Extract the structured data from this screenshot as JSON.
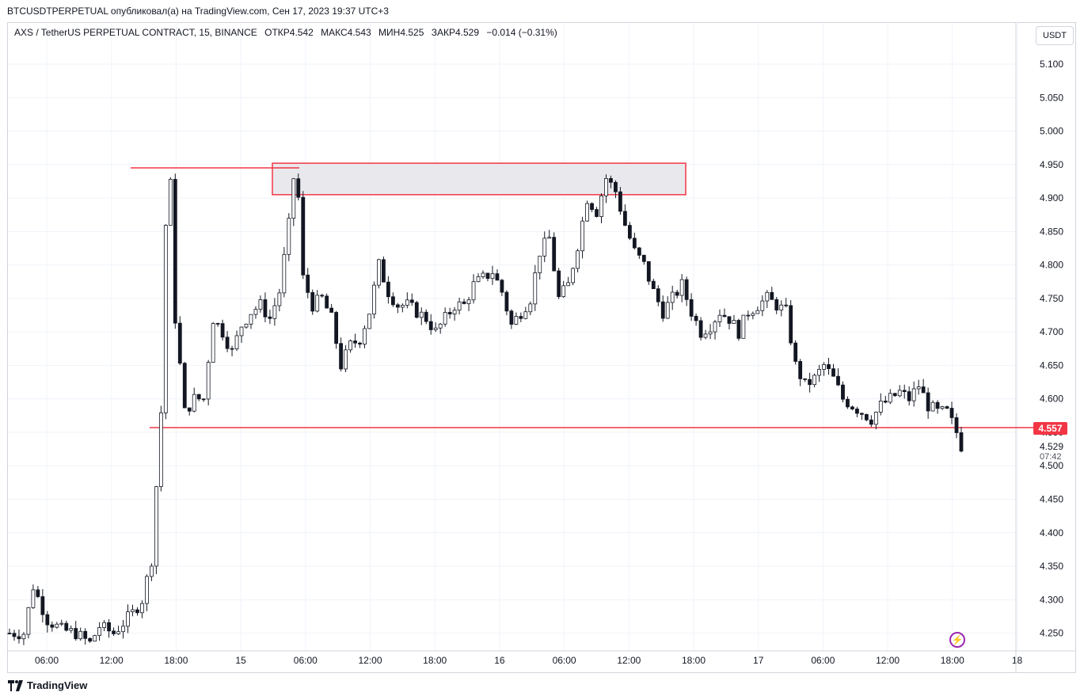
{
  "header": {
    "publish_line": "BTCUSDTPERPETUAL опубликовал(а) на TradingView.com, Сен 17, 2023 19:37 UTC+3"
  },
  "legend": {
    "symbol": "AXS / TetherUS PERPETUAL CONTRACT, 15, BINANCE",
    "open": "ОТКР4.542",
    "high": "МАКС4.543",
    "low": "МИН4.525",
    "close": "ЗАКР4.529",
    "change": "−0.014 (−0.31%)"
  },
  "unit_button": "USDT",
  "price_labels": {
    "level_label": "4.557",
    "current_price": "4.529",
    "countdown": "07:42"
  },
  "footer": {
    "brand": "TradingView"
  },
  "colors": {
    "accent": "#f23645",
    "candle": "#131722",
    "zone_fill": "#e9e9ed",
    "grid": "#f0f3fa"
  },
  "chart_data": {
    "type": "candlestick",
    "y_ticks": [
      "5.100",
      "5.050",
      "5.000",
      "4.950",
      "4.900",
      "4.850",
      "4.800",
      "4.750",
      "4.700",
      "4.650",
      "4.600",
      "4.550",
      "4.500",
      "4.450",
      "4.400",
      "4.350",
      "4.300",
      "4.250"
    ],
    "x_ticks": [
      "06:00",
      "12:00",
      "18:00",
      "15",
      "06:00",
      "12:00",
      "18:00",
      "16",
      "06:00",
      "12:00",
      "18:00",
      "17",
      "06:00",
      "12:00",
      "18:00",
      "18"
    ],
    "ylim": [
      4.225,
      5.125
    ],
    "annotations": {
      "resistance_zone": [
        4.905,
        4.952
      ],
      "support_line": 4.557,
      "high_line": 4.945
    },
    "price_path": [
      [
        0,
        4.25
      ],
      [
        3,
        4.25
      ],
      [
        5,
        4.32
      ],
      [
        8,
        4.27
      ],
      [
        11,
        4.255
      ],
      [
        14,
        4.25
      ],
      [
        17,
        4.235
      ],
      [
        19,
        4.26
      ],
      [
        22,
        4.25
      ],
      [
        26,
        4.28
      ],
      [
        28,
        4.3
      ],
      [
        30,
        4.36
      ],
      [
        32,
        4.58
      ],
      [
        33,
        4.86
      ],
      [
        34,
        4.92
      ],
      [
        35,
        4.72
      ],
      [
        37,
        4.58
      ],
      [
        39,
        4.6
      ],
      [
        41,
        4.6
      ],
      [
        43,
        4.72
      ],
      [
        45,
        4.7
      ],
      [
        47,
        4.67
      ],
      [
        49,
        4.71
      ],
      [
        51,
        4.73
      ],
      [
        53,
        4.74
      ],
      [
        55,
        4.72
      ],
      [
        57,
        4.76
      ],
      [
        59,
        4.86
      ],
      [
        60,
        4.93
      ],
      [
        61,
        4.9
      ],
      [
        62,
        4.78
      ],
      [
        64,
        4.74
      ],
      [
        66,
        4.75
      ],
      [
        68,
        4.72
      ],
      [
        70,
        4.65
      ],
      [
        72,
        4.68
      ],
      [
        74,
        4.69
      ],
      [
        76,
        4.73
      ],
      [
        78,
        4.8
      ],
      [
        80,
        4.76
      ],
      [
        82,
        4.74
      ],
      [
        84,
        4.74
      ],
      [
        86,
        4.73
      ],
      [
        88,
        4.72
      ],
      [
        90,
        4.7
      ],
      [
        92,
        4.72
      ],
      [
        94,
        4.74
      ],
      [
        96,
        4.74
      ],
      [
        98,
        4.77
      ],
      [
        100,
        4.78
      ],
      [
        102,
        4.79
      ],
      [
        104,
        4.76
      ],
      [
        106,
        4.71
      ],
      [
        108,
        4.73
      ],
      [
        110,
        4.75
      ],
      [
        112,
        4.82
      ],
      [
        114,
        4.84
      ],
      [
        116,
        4.75
      ],
      [
        118,
        4.77
      ],
      [
        120,
        4.83
      ],
      [
        122,
        4.9
      ],
      [
        124,
        4.88
      ],
      [
        126,
        4.93
      ],
      [
        128,
        4.91
      ],
      [
        130,
        4.86
      ],
      [
        132,
        4.82
      ],
      [
        134,
        4.8
      ],
      [
        136,
        4.76
      ],
      [
        138,
        4.73
      ],
      [
        140,
        4.75
      ],
      [
        142,
        4.77
      ],
      [
        144,
        4.73
      ],
      [
        146,
        4.7
      ],
      [
        148,
        4.71
      ],
      [
        150,
        4.73
      ],
      [
        152,
        4.72
      ],
      [
        154,
        4.7
      ],
      [
        156,
        4.73
      ],
      [
        158,
        4.74
      ],
      [
        160,
        4.75
      ],
      [
        162,
        4.74
      ],
      [
        164,
        4.73
      ],
      [
        166,
        4.65
      ],
      [
        168,
        4.62
      ],
      [
        170,
        4.63
      ],
      [
        172,
        4.65
      ],
      [
        174,
        4.63
      ],
      [
        176,
        4.6
      ],
      [
        178,
        4.59
      ],
      [
        180,
        4.58
      ],
      [
        182,
        4.57
      ],
      [
        184,
        4.59
      ],
      [
        186,
        4.6
      ],
      [
        188,
        4.61
      ],
      [
        190,
        4.6
      ],
      [
        192,
        4.62
      ],
      [
        194,
        4.59
      ],
      [
        196,
        4.58
      ],
      [
        198,
        4.58
      ],
      [
        200,
        4.55
      ],
      [
        201,
        4.53
      ]
    ]
  }
}
